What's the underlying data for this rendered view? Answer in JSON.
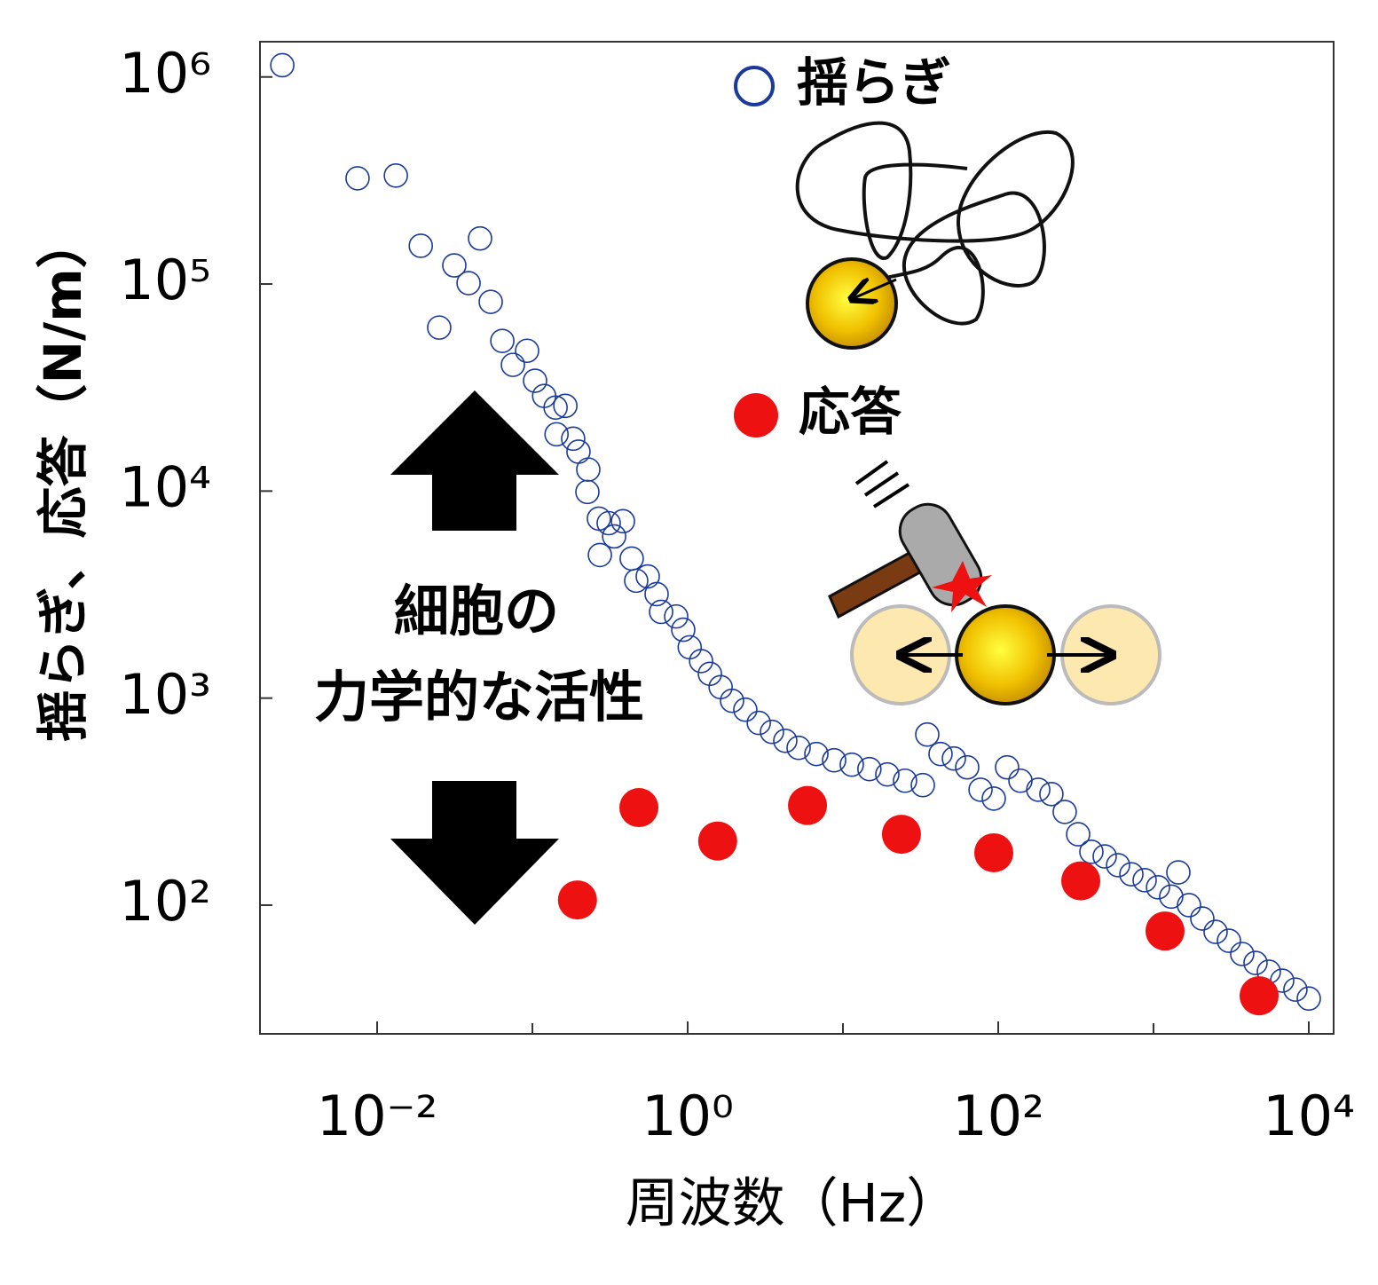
{
  "chart_data": {
    "type": "scatter",
    "xlabel": "周波数（Hz）",
    "ylabel": "揺らぎ、応答（N/m）",
    "annotations": [
      "細胞の",
      "力学的な活性"
    ],
    "xscale": "log",
    "yscale": "log",
    "xlim": [
      0.00176,
      14454
    ],
    "ylim": [
      23.9,
      1480000
    ],
    "xticks": [
      {
        "value": 0.01,
        "label": "10⁻²"
      },
      {
        "value": 1,
        "label": "10⁰"
      },
      {
        "value": 100,
        "label": "10²"
      },
      {
        "value": 10000,
        "label": "10⁴"
      }
    ],
    "xminorticks": [
      0.1,
      10,
      1000
    ],
    "yticks": [
      {
        "value": 100,
        "label": "10²"
      },
      {
        "value": 1000,
        "label": "10³"
      },
      {
        "value": 10000,
        "label": "10⁴"
      },
      {
        "value": 100000,
        "label": "10⁵"
      },
      {
        "value": 1000000,
        "label": "10⁶"
      }
    ],
    "series": [
      {
        "name": "揺らぎ",
        "color": "#1a3a9c",
        "marker": "open",
        "x": [
          0.00245,
          0.00748,
          0.0132,
          0.0191,
          0.046,
          0.0314,
          0.0388,
          0.0251,
          0.0539,
          0.064,
          0.0924,
          0.0749,
          0.104,
          0.119,
          0.141,
          0.163,
          0.143,
          0.183,
          0.198,
          0.229,
          0.226,
          0.268,
          0.31,
          0.383,
          0.336,
          0.272,
          0.436,
          0.466,
          0.553,
          0.631,
          0.674,
          0.843,
          0.936,
          1.03,
          1.22,
          1.39,
          1.63,
          1.93,
          2.35,
          2.87,
          3.49,
          4.25,
          5.18,
          6.74,
          8.77,
          11.4,
          14.8,
          19.3,
          25.1,
          32.7,
          34.9,
          42.5,
          51.8,
          63.1,
          76.9,
          93.6,
          114,
          139,
          181,
          220,
          268,
          327,
          398,
          485,
          591,
          720,
          877,
          1069,
          1300,
          1445,
          1693,
          2061,
          2512,
          3060,
          3725,
          4540,
          5530,
          6740,
          8200,
          10000
        ],
        "values": [
          1140000,
          324000,
          334000,
          153000,
          166000,
          123000,
          101000,
          61600,
          82000,
          53100,
          47600,
          40700,
          34100,
          28800,
          25300,
          25800,
          18800,
          17900,
          15500,
          12700,
          9900,
          7360,
          7000,
          7150,
          6040,
          4910,
          4720,
          3690,
          3870,
          3180,
          2610,
          2480,
          2140,
          1760,
          1510,
          1310,
          1130,
          971,
          879,
          759,
          687,
          622,
          575,
          537,
          501,
          477,
          454,
          428,
          399,
          380,
          667,
          537,
          511,
          463,
          361,
          327,
          463,
          399,
          361,
          344,
          282,
          220,
          181,
          172,
          156,
          141,
          132,
          122,
          110,
          144,
          100,
          86.2,
          74.3,
          67.3,
          58.1,
          52.6,
          47.7,
          43.2,
          39.1,
          35.4
        ]
      },
      {
        "name": "応答",
        "color": "#ee1111",
        "marker": "filled",
        "x": [
          0.195,
          0.485,
          1.56,
          5.91,
          23.8,
          93.6,
          340,
          1186,
          4786
        ],
        "values": [
          106,
          296,
          204,
          303,
          220,
          179,
          131,
          75,
          36.5
        ]
      }
    ]
  }
}
